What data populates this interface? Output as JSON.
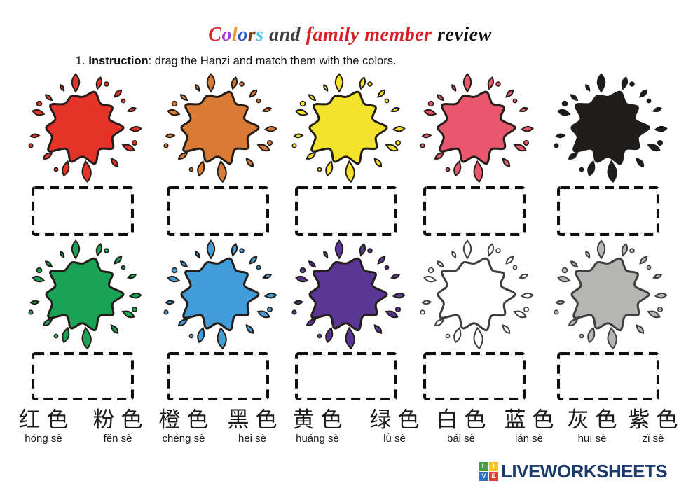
{
  "title": {
    "segments": [
      {
        "text": "C",
        "color": "#d6252b"
      },
      {
        "text": "o",
        "color": "#a03fd6"
      },
      {
        "text": "l",
        "color": "#e2992b"
      },
      {
        "text": "o",
        "color": "#2c50c8"
      },
      {
        "text": "r",
        "color": "#7d3b12"
      },
      {
        "text": "s",
        "color": "#45c8e6"
      },
      {
        "text": " and ",
        "color": "#3f3f3f"
      },
      {
        "text": "family member ",
        "color": "#d42026"
      },
      {
        "text": "review",
        "color": "#101010"
      }
    ]
  },
  "instruction": {
    "number": "1. ",
    "label": "Instruction",
    "rest": ": drag the Hanzi and match them with the colors."
  },
  "splats": [
    {
      "name": "red",
      "fill": "#e5332a",
      "outline": "#241d18"
    },
    {
      "name": "orange",
      "fill": "#d97a35",
      "outline": "#241d18"
    },
    {
      "name": "yellow",
      "fill": "#f4e32c",
      "outline": "#241d18"
    },
    {
      "name": "pink",
      "fill": "#e8576e",
      "outline": "#241d18"
    },
    {
      "name": "black",
      "fill": "#1e1d1b",
      "outline": "#1e1d1b"
    },
    {
      "name": "green",
      "fill": "#1aa257",
      "outline": "#241d18"
    },
    {
      "name": "blue",
      "fill": "#419cd8",
      "outline": "#241d18"
    },
    {
      "name": "purple",
      "fill": "#5a3795",
      "outline": "#241d18"
    },
    {
      "name": "white",
      "fill": "#ffffff",
      "outline": "#3f3f3f"
    },
    {
      "name": "gray",
      "fill": "#b5b5b3",
      "outline": "#3f3f3f"
    }
  ],
  "labels": [
    {
      "hanzi": "红色",
      "pinyin": "hóng sè",
      "color_name": "red"
    },
    {
      "hanzi": "粉色",
      "pinyin": "fěn sè",
      "color_name": "pink"
    },
    {
      "hanzi": "橙色",
      "pinyin": "chéng sè",
      "color_name": "orange"
    },
    {
      "hanzi": "黑色",
      "pinyin": "hēi sè",
      "color_name": "black"
    },
    {
      "hanzi": "黄色",
      "pinyin": "huáng sè",
      "color_name": "yellow"
    },
    {
      "hanzi": "绿色",
      "pinyin": "lǜ sè",
      "color_name": "green"
    },
    {
      "hanzi": "白色",
      "pinyin": "bái sè",
      "color_name": "white"
    },
    {
      "hanzi": "蓝色",
      "pinyin": "lán sè",
      "color_name": "blue"
    },
    {
      "hanzi": "灰色",
      "pinyin": "huī sè",
      "color_name": "gray"
    },
    {
      "hanzi": "紫色",
      "pinyin": "zǐ sè",
      "color_name": "purple"
    }
  ],
  "logo": {
    "text": "LIVEWORKSHEETS",
    "text_color": "#1c3a6a",
    "tiles": [
      {
        "letter": "L",
        "color": "#43a047"
      },
      {
        "letter": "I",
        "color": "#fdc12f"
      },
      {
        "letter": "V",
        "color": "#2e6fc0"
      },
      {
        "letter": "E",
        "color": "#e53935"
      }
    ]
  }
}
